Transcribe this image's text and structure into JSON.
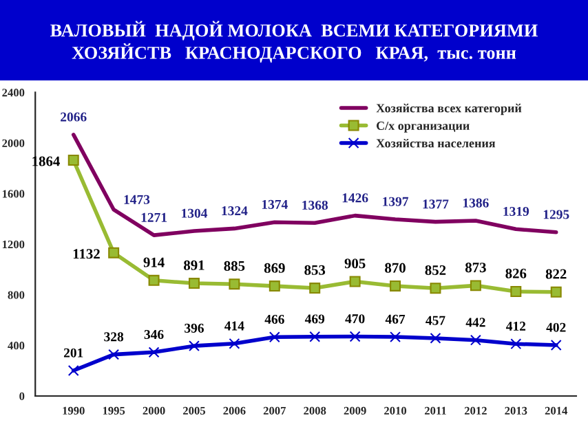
{
  "chart_data": {
    "type": "line",
    "title": "ВАЛОВЫЙ  НАДОЙ МОЛОКА  ВСЕМИ КАТЕГОРИЯМИ\nХОЗЯЙСТВ   КРАСНОДАРСКОГО   КРАЯ,  тыс. тонн",
    "categories": [
      "1990",
      "1995",
      "2000",
      "2005",
      "2006",
      "2007",
      "2008",
      "2009",
      "2010",
      "2011",
      "2012",
      "2013",
      "2014"
    ],
    "series": [
      {
        "name": "Хозяйства всех категорий",
        "color": "#800060",
        "marker": "none",
        "values": [
          2066,
          1473,
          1271,
          1304,
          1324,
          1374,
          1368,
          1426,
          1397,
          1377,
          1386,
          1319,
          1295
        ]
      },
      {
        "name": "С/х организации",
        "color": "#99bb33",
        "marker": "square",
        "values": [
          1864,
          1132,
          914,
          891,
          885,
          869,
          853,
          905,
          870,
          852,
          873,
          826,
          822
        ]
      },
      {
        "name": "Хозяйства населения",
        "color": "#0000cc",
        "marker": "cross",
        "values": [
          201,
          328,
          346,
          396,
          414,
          466,
          469,
          470,
          467,
          457,
          442,
          412,
          402
        ]
      }
    ],
    "ylim": [
      0,
      2400
    ],
    "yticks": [
      0,
      400,
      800,
      1200,
      1600,
      2000,
      2400
    ],
    "grid": false,
    "legend": "top right",
    "data_labels": true
  }
}
